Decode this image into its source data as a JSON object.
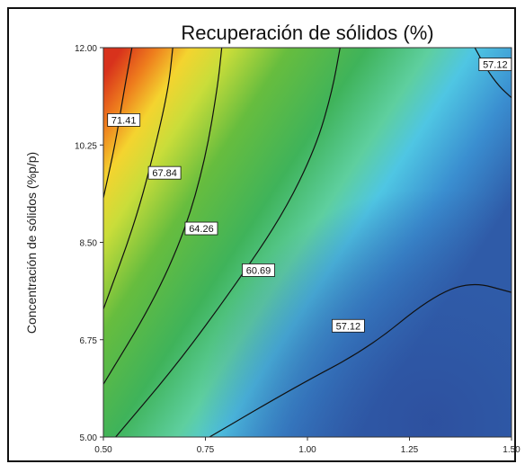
{
  "chart_data": {
    "type": "contour",
    "title": "Recuperación de sólidos (%)",
    "xlabel": "",
    "ylabel": "Concentración de sólidos (%p/p)",
    "xlim": [
      0.5,
      1.5
    ],
    "ylim": [
      5.0,
      12.0
    ],
    "x_ticks": [
      "0.50",
      "0.75",
      "1.00",
      "1.25",
      "1.50"
    ],
    "y_ticks": [
      "5.00",
      "6.75",
      "8.50",
      "10.25",
      "12.00"
    ],
    "contour_levels": [
      "71.41",
      "67.84",
      "64.26",
      "60.69",
      "57.12",
      "57.12"
    ],
    "contours": [
      {
        "level": "71.41",
        "points": [
          [
            0.5,
            9.3
          ],
          [
            0.53,
            10.3
          ],
          [
            0.55,
            11.2
          ],
          [
            0.57,
            12.0
          ]
        ]
      },
      {
        "level": "67.84",
        "points": [
          [
            0.5,
            7.3
          ],
          [
            0.58,
            8.9
          ],
          [
            0.63,
            10.3
          ],
          [
            0.66,
            11.3
          ],
          [
            0.67,
            12.0
          ]
        ]
      },
      {
        "level": "64.26",
        "points": [
          [
            0.5,
            5.95
          ],
          [
            0.62,
            7.4
          ],
          [
            0.7,
            8.7
          ],
          [
            0.75,
            10.0
          ],
          [
            0.78,
            11.3
          ],
          [
            0.79,
            12.0
          ]
        ]
      },
      {
        "level": "60.69",
        "points": [
          [
            0.53,
            5.0
          ],
          [
            0.68,
            6.3
          ],
          [
            0.82,
            7.7
          ],
          [
            0.94,
            9.0
          ],
          [
            1.02,
            10.2
          ],
          [
            1.06,
            11.2
          ],
          [
            1.08,
            12.0
          ]
        ]
      },
      {
        "level": "57.12",
        "points": [
          [
            0.76,
            5.0
          ],
          [
            0.97,
            5.9
          ],
          [
            1.15,
            6.6
          ],
          [
            1.3,
            7.5
          ],
          [
            1.4,
            7.8
          ],
          [
            1.5,
            7.6
          ]
        ]
      },
      {
        "level": "57.12",
        "points": [
          [
            1.41,
            12.0
          ],
          [
            1.44,
            11.6
          ],
          [
            1.47,
            11.3
          ],
          [
            1.5,
            11.1
          ]
        ]
      }
    ],
    "labels": [
      {
        "text": "71.41",
        "x": 0.55,
        "y": 10.7
      },
      {
        "text": "67.84",
        "x": 0.65,
        "y": 9.75
      },
      {
        "text": "64.26",
        "x": 0.74,
        "y": 8.75
      },
      {
        "text": "60.69",
        "x": 0.88,
        "y": 8.0
      },
      {
        "text": "57.12",
        "x": 1.1,
        "y": 7.0
      },
      {
        "text": "57.12",
        "x": 1.46,
        "y": 11.7
      }
    ],
    "grid": false,
    "legend": "none"
  }
}
